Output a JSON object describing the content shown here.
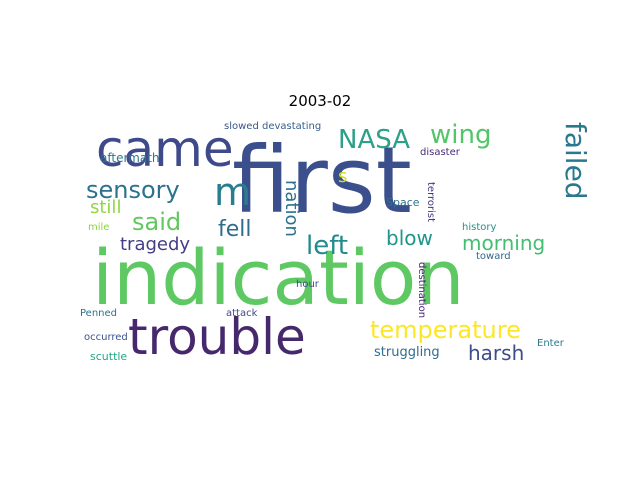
{
  "chart_data": {
    "type": "wordcloud",
    "title": "2003-02",
    "words": [
      {
        "text": "first",
        "color": "#3b4f8c"
      },
      {
        "text": "indication",
        "color": "#5ec962"
      },
      {
        "text": "came",
        "color": "#3e4a89"
      },
      {
        "text": "trouble",
        "color": "#46286d"
      },
      {
        "text": "m",
        "color": "#287d8e"
      },
      {
        "text": "sensory",
        "color": "#2c728e"
      },
      {
        "text": "NASA",
        "color": "#2ca08a"
      },
      {
        "text": "wing",
        "color": "#54c568"
      },
      {
        "text": "failed",
        "color": "#2a788e"
      },
      {
        "text": "said",
        "color": "#61c85f"
      },
      {
        "text": "fell",
        "color": "#2f6c8e"
      },
      {
        "text": "left",
        "color": "#238a8d"
      },
      {
        "text": "blow",
        "color": "#1f958b"
      },
      {
        "text": "morning",
        "color": "#42be71"
      },
      {
        "text": "temperature",
        "color": "#fde725"
      },
      {
        "text": "harsh",
        "color": "#3e4c8a"
      },
      {
        "text": "tragedy",
        "color": "#433e85"
      },
      {
        "text": "still",
        "color": "#8fd744"
      },
      {
        "text": "nation",
        "color": "#2d718e"
      },
      {
        "text": "s",
        "color": "#d0e11c"
      },
      {
        "text": "aftermath",
        "color": "#2a768e"
      },
      {
        "text": "slowed",
        "color": "#39568c"
      },
      {
        "text": "devastating",
        "color": "#355f8d"
      },
      {
        "text": "disaster",
        "color": "#472c7a"
      },
      {
        "text": "Space",
        "color": "#2d708e"
      },
      {
        "text": "terrorist",
        "color": "#453781"
      },
      {
        "text": "history",
        "color": "#21918c"
      },
      {
        "text": "toward",
        "color": "#31688e"
      },
      {
        "text": "mile",
        "color": "#8bd646"
      },
      {
        "text": "hour",
        "color": "#3d4d8a"
      },
      {
        "text": "destination",
        "color": "#482475"
      },
      {
        "text": "Penned",
        "color": "#2c728e"
      },
      {
        "text": "attack",
        "color": "#3e4989"
      },
      {
        "text": "occurred",
        "color": "#3b528b"
      },
      {
        "text": "Enter",
        "color": "#2a788e"
      },
      {
        "text": "struggling",
        "color": "#2f6c8e"
      },
      {
        "text": "scuttle",
        "color": "#22a884"
      }
    ]
  }
}
